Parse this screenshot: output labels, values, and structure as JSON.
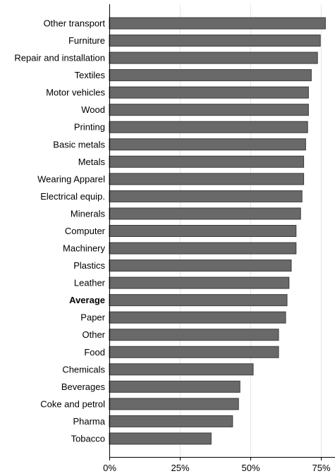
{
  "chart_data": {
    "type": "bar",
    "orientation": "horizontal",
    "title": "",
    "xlabel": "",
    "ylabel": "",
    "categories": [
      "Other transport",
      "Furniture",
      "Repair and installation",
      "Textiles",
      "Motor vehicles",
      "Wood",
      "Printing",
      "Basic metals",
      "Metals",
      "Wearing Apparel",
      "Electrical equip.",
      "Minerals",
      "Computer",
      "Machinery",
      "Plastics",
      "Leather",
      "Average",
      "Paper",
      "Other",
      "Food",
      "Chemicals",
      "Beverages",
      "Coke and petrol",
      "Pharma",
      "Tobacco"
    ],
    "values": [
      76.6,
      74.8,
      73.8,
      71.6,
      70.6,
      70.6,
      70.3,
      69.6,
      68.9,
      68.9,
      68.3,
      67.8,
      66.2,
      66.2,
      64.5,
      63.7,
      63.0,
      62.5,
      60.0,
      60.0,
      51.0,
      46.3,
      45.8,
      43.7,
      36.1
    ],
    "highlight": "Average",
    "xlim": [
      0,
      80
    ],
    "xticks": [
      0,
      25,
      50,
      75
    ],
    "xtick_labels": [
      "0%",
      "25%",
      "50%",
      "75%"
    ],
    "grid": true,
    "legend": "none",
    "bar_color": "#696969",
    "bar_border_color": "#3c3c3c",
    "grid_color": "#e6e6e6",
    "axis_color": "#000000"
  }
}
